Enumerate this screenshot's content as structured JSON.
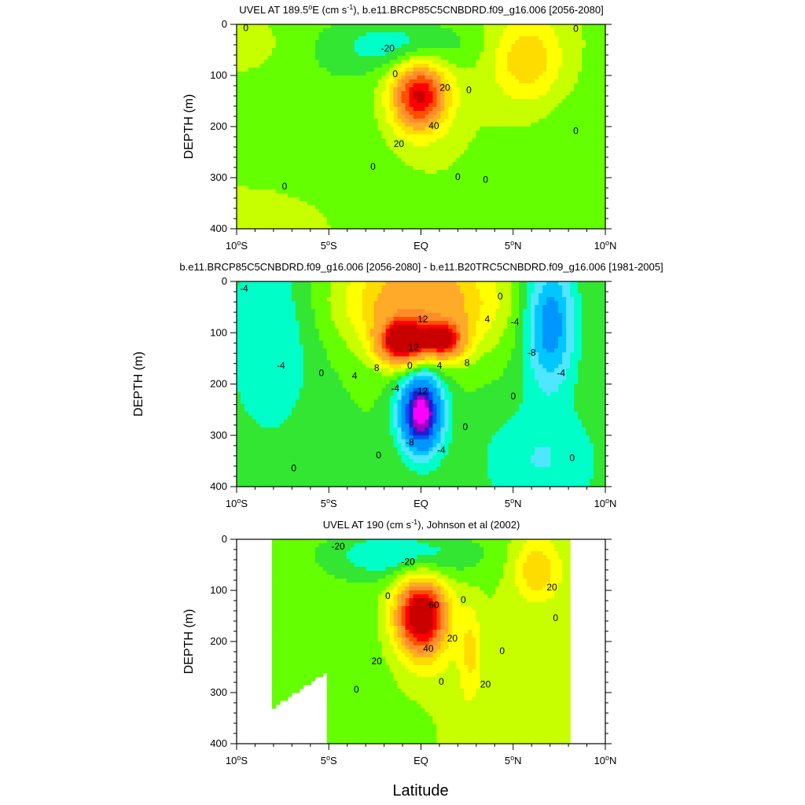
{
  "chart_data": [
    {
      "type": "contour",
      "title": "UVEL AT 189.5°E (cm s-1), b.e11.BRCP85C5CNBDRD.f09_g16.006 [2056-2080]",
      "title_main": "UVEL AT 189.5",
      "title_deg": "o",
      "title_unit": "E (cm s",
      "title_exp": "-1",
      "title_tail": "), b.e11.BRCP85C5CNBDRD.f09_g16.006 [2056-2080]",
      "ylabel": "DEPTH (m)",
      "xlim": [
        -10,
        10
      ],
      "ylim": [
        400,
        0
      ],
      "yticks": [
        0,
        100,
        200,
        300,
        400
      ],
      "contour_interval": 10,
      "features": [
        {
          "kind": "max",
          "lat": -0.1,
          "depth": 140,
          "peak": 75,
          "note": "EUC core"
        },
        {
          "kind": "min",
          "lat": -1.0,
          "depth": 40,
          "peak": -25,
          "note": "SEC"
        },
        {
          "kind": "max",
          "lat": 5.8,
          "depth": 70,
          "peak": 30,
          "note": "NECC"
        }
      ],
      "contour_labels": [
        {
          "text": "0",
          "lat": -9.5,
          "depth": 8
        },
        {
          "text": "-20",
          "lat": -1.8,
          "depth": 48
        },
        {
          "text": "0",
          "lat": -1.4,
          "depth": 98
        },
        {
          "text": "20",
          "lat": 1.3,
          "depth": 125
        },
        {
          "text": "0",
          "lat": 2.6,
          "depth": 130
        },
        {
          "text": "40",
          "lat": 0.7,
          "depth": 200
        },
        {
          "text": "20",
          "lat": -1.2,
          "depth": 235
        },
        {
          "text": "0",
          "lat": -2.6,
          "depth": 280
        },
        {
          "text": "0",
          "lat": -7.4,
          "depth": 318
        },
        {
          "text": "0",
          "lat": 2.0,
          "depth": 300
        },
        {
          "text": "0",
          "lat": 3.5,
          "depth": 305
        },
        {
          "text": "0",
          "lat": 8.4,
          "depth": 210
        },
        {
          "text": "0",
          "lat": 8.4,
          "depth": 10
        }
      ]
    },
    {
      "type": "contour",
      "title": "b.e11.BRCP85C5CNBDRD.f09_g16.006 [2056-2080] - b.e11.B20TRC5CNBDRD.f09_g16.006 [1981-2005]",
      "ylabel": "DEPTH (m)",
      "xlim": [
        -10,
        10
      ],
      "ylim": [
        400,
        0
      ],
      "yticks": [
        0,
        100,
        200,
        300,
        400
      ],
      "contour_interval": 2,
      "features": [
        {
          "kind": "max",
          "lat": -1.0,
          "depth": 120,
          "peak": 20
        },
        {
          "kind": "max",
          "lat": 1.2,
          "depth": 115,
          "peak": 16
        },
        {
          "kind": "min",
          "lat": 0.0,
          "depth": 255,
          "peak": -20
        },
        {
          "kind": "min",
          "lat": 7.0,
          "depth": 80,
          "peak": -10
        },
        {
          "kind": "min",
          "lat": -8.2,
          "depth": 110,
          "peak": -4
        }
      ],
      "contour_labels": [
        {
          "text": "-4",
          "lat": -9.6,
          "depth": 15
        },
        {
          "text": "-4",
          "lat": -7.6,
          "depth": 165
        },
        {
          "text": "0",
          "lat": -5.4,
          "depth": 180
        },
        {
          "text": "4",
          "lat": -3.6,
          "depth": 185
        },
        {
          "text": "8",
          "lat": -2.4,
          "depth": 170
        },
        {
          "text": "12",
          "lat": 0.1,
          "depth": 75
        },
        {
          "text": "12",
          "lat": -0.4,
          "depth": 130
        },
        {
          "text": "4",
          "lat": 3.6,
          "depth": 75
        },
        {
          "text": "0",
          "lat": 4.3,
          "depth": 30
        },
        {
          "text": "-4",
          "lat": 5.1,
          "depth": 80
        },
        {
          "text": "-8",
          "lat": 6.0,
          "depth": 140
        },
        {
          "text": "-4",
          "lat": 7.6,
          "depth": 180
        },
        {
          "text": "4",
          "lat": 1.0,
          "depth": 165
        },
        {
          "text": "8",
          "lat": 2.5,
          "depth": 160
        },
        {
          "text": "0",
          "lat": -0.6,
          "depth": 165
        },
        {
          "text": "-4",
          "lat": -1.4,
          "depth": 210
        },
        {
          "text": "-12",
          "lat": 0.0,
          "depth": 215
        },
        {
          "text": "-8",
          "lat": -0.6,
          "depth": 315
        },
        {
          "text": "-4",
          "lat": 1.1,
          "depth": 330
        },
        {
          "text": "0",
          "lat": 2.4,
          "depth": 285
        },
        {
          "text": "0",
          "lat": 5.0,
          "depth": 225
        },
        {
          "text": "0",
          "lat": -2.3,
          "depth": 340
        },
        {
          "text": "0",
          "lat": -6.9,
          "depth": 365
        },
        {
          "text": "0",
          "lat": 8.2,
          "depth": 345
        }
      ]
    },
    {
      "type": "contour",
      "title": "UVEL AT 190 (cm s-1), Johnson et al (2002)",
      "title_main": "UVEL AT 190 (cm s",
      "title_exp": "-1",
      "title_tail": "), Johnson et al (2002)",
      "ylabel": "DEPTH (m)",
      "xlabel": "Latitude",
      "xlim": [
        -10,
        10
      ],
      "ylim": [
        400,
        0
      ],
      "yticks": [
        0,
        100,
        200,
        300,
        400
      ],
      "data_lat_range": [
        -8,
        8
      ],
      "contour_interval": 10,
      "features": [
        {
          "kind": "max",
          "lat": 0.0,
          "depth": 150,
          "peak": 90
        },
        {
          "kind": "min",
          "lat": -1.0,
          "depth": 30,
          "peak": -30
        },
        {
          "kind": "max",
          "lat": 6.3,
          "depth": 60,
          "peak": 30
        }
      ],
      "contour_labels": [
        {
          "text": "-20",
          "lat": -4.5,
          "depth": 15
        },
        {
          "text": "-20",
          "lat": -0.7,
          "depth": 45
        },
        {
          "text": "0",
          "lat": -1.8,
          "depth": 112
        },
        {
          "text": "60",
          "lat": 0.7,
          "depth": 130
        },
        {
          "text": "0",
          "lat": 2.3,
          "depth": 120
        },
        {
          "text": "40",
          "lat": 0.4,
          "depth": 215
        },
        {
          "text": "20",
          "lat": 1.7,
          "depth": 195
        },
        {
          "text": "20",
          "lat": -2.4,
          "depth": 240
        },
        {
          "text": "0",
          "lat": 4.4,
          "depth": 220
        },
        {
          "text": "0",
          "lat": 1.1,
          "depth": 280
        },
        {
          "text": "0",
          "lat": -3.5,
          "depth": 295
        },
        {
          "text": "20",
          "lat": 3.5,
          "depth": 285
        },
        {
          "text": "20",
          "lat": 7.1,
          "depth": 95
        },
        {
          "text": "0",
          "lat": 7.3,
          "depth": 155
        }
      ]
    }
  ],
  "xtick_labels": [
    {
      "num": "10",
      "deg": "o",
      "hem": "S"
    },
    {
      "num": "5",
      "deg": "o",
      "hem": "S"
    },
    {
      "num": "EQ",
      "deg": "",
      "hem": ""
    },
    {
      "num": "5",
      "deg": "o",
      "hem": "N"
    },
    {
      "num": "10",
      "deg": "o",
      "hem": "N"
    }
  ],
  "shared_xlabel": "Latitude",
  "colors": {
    "palette": [
      "#ff00ff",
      "#a000c8",
      "#1e1ec8",
      "#0050ff",
      "#0096ff",
      "#00c8ff",
      "#50e6ff",
      "#00ffc8",
      "#32e632",
      "#64ff00",
      "#c8ff00",
      "#ffff00",
      "#ffdc00",
      "#ffaa28",
      "#ff8c28",
      "#ff5000",
      "#ff0000",
      "#c80000"
    ]
  }
}
